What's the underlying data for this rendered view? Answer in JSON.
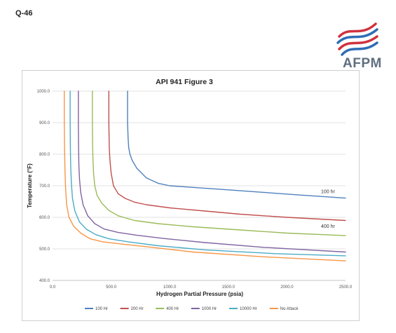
{
  "page": {
    "question_label": "Q-46"
  },
  "logo": {
    "text": "AFPM",
    "colors": {
      "red": "#d0323f",
      "blue": "#2f6db5",
      "text": "#5f6f80"
    }
  },
  "chart_data": {
    "type": "line",
    "title": "API 941 Figure 3",
    "xlabel": "Hydrogen Partial Pressure (psia)",
    "ylabel": "Temperature (°F)",
    "xlim": [
      0,
      2500
    ],
    "ylim": [
      400,
      1000
    ],
    "xticks": [
      "0.0",
      "500.0",
      "1000.0",
      "1500.0",
      "2000.0",
      "2500.0"
    ],
    "yticks": [
      "400.0",
      "500.0",
      "600.0",
      "700.0",
      "800.0",
      "900.0",
      "1000.0"
    ],
    "grid": "horizontal",
    "legend_position": "bottom",
    "annotations": [
      {
        "text": "100 hr",
        "x": 2350,
        "y": 670
      },
      {
        "text": "400 hr",
        "x": 2350,
        "y": 560
      }
    ],
    "series": [
      {
        "name": "100 Hr",
        "color": "#4f81bd",
        "x": [
          640,
          640,
          645,
          650,
          660,
          680,
          720,
          800,
          900,
          1000,
          1200,
          1500,
          1800,
          2100,
          2500
        ],
        "y": [
          1000,
          900,
          850,
          820,
          800,
          780,
          755,
          725,
          708,
          700,
          695,
          687,
          679,
          671,
          661
        ]
      },
      {
        "name": "200 Hr",
        "color": "#c0504d",
        "x": [
          480,
          480,
          484,
          490,
          500,
          520,
          560,
          620,
          700,
          800,
          1000,
          1300,
          1600,
          2000,
          2500
        ],
        "y": [
          1000,
          900,
          820,
          780,
          740,
          700,
          675,
          660,
          648,
          640,
          630,
          620,
          610,
          600,
          590
        ]
      },
      {
        "name": "400 Hr",
        "color": "#9bbb59",
        "x": [
          340,
          340,
          342,
          345,
          350,
          360,
          380,
          420,
          480,
          560,
          700,
          900,
          1200,
          1600,
          2000,
          2500
        ],
        "y": [
          1000,
          900,
          820,
          780,
          740,
          700,
          670,
          645,
          622,
          605,
          590,
          580,
          570,
          560,
          550,
          542
        ]
      },
      {
        "name": "1000 Hr",
        "color": "#8064a2",
        "x": [
          220,
          220,
          222,
          225,
          230,
          240,
          260,
          300,
          360,
          440,
          560,
          720,
          950,
          1300,
          1800,
          2500
        ],
        "y": [
          1000,
          900,
          820,
          760,
          720,
          680,
          640,
          605,
          580,
          563,
          552,
          543,
          533,
          520,
          505,
          490
        ]
      },
      {
        "name": "10000 Hr",
        "color": "#4bacc6",
        "x": [
          150,
          150,
          152,
          155,
          160,
          170,
          190,
          230,
          290,
          370,
          480,
          650,
          900,
          1300,
          1900,
          2500
        ],
        "y": [
          1000,
          900,
          820,
          760,
          710,
          660,
          620,
          585,
          562,
          545,
          532,
          522,
          510,
          497,
          485,
          478
        ]
      },
      {
        "name": "No Attack",
        "color": "#f79646",
        "x": [
          100,
          100,
          102,
          105,
          110,
          120,
          140,
          180,
          240,
          320,
          430,
          600,
          850,
          1200,
          1800,
          2500
        ],
        "y": [
          1000,
          900,
          820,
          760,
          700,
          640,
          600,
          572,
          550,
          532,
          522,
          515,
          505,
          490,
          475,
          462
        ]
      }
    ]
  }
}
